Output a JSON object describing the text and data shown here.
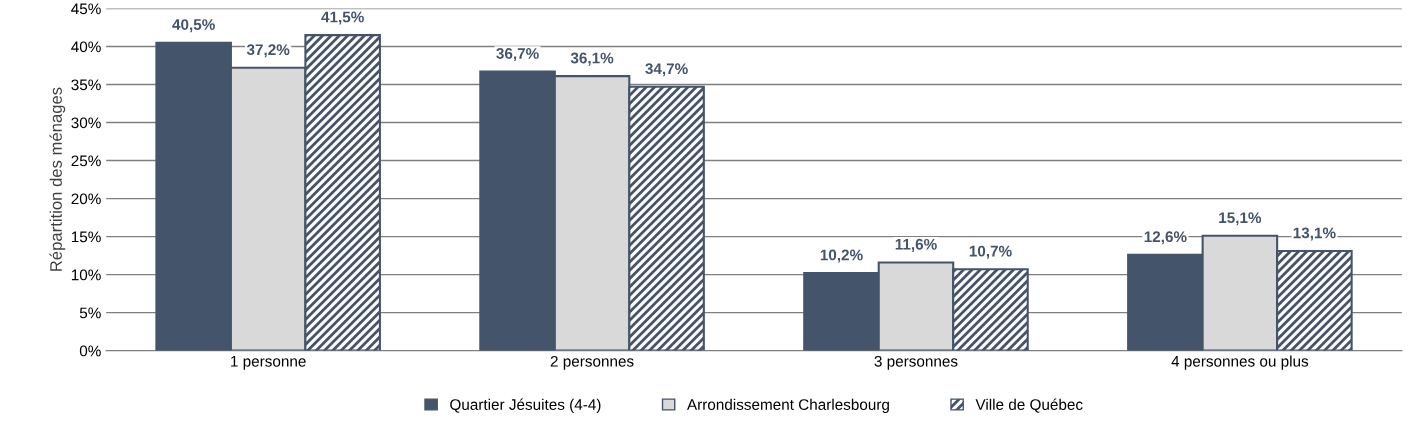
{
  "chart_data": {
    "type": "bar",
    "ylabel": "Répartition des ménages",
    "categories": [
      "1 personne",
      "2 personnes",
      "3 personnes",
      "4 personnes ou plus"
    ],
    "series": [
      {
        "name": "Quartier Jésuites (4-4)",
        "color": "#44546a",
        "values": [
          40.5,
          36.7,
          10.2,
          12.6
        ],
        "value_labels": [
          "40,5%",
          "36,7%",
          "10,2%",
          "12,6%"
        ]
      },
      {
        "name": "Arrondissement Charlesbourg",
        "color": "#d9d9d9",
        "values": [
          37.2,
          36.1,
          11.6,
          15.1
        ],
        "value_labels": [
          "37,2%",
          "36,1%",
          "11,6%",
          "15,1%"
        ]
      },
      {
        "name": "Ville de Québec",
        "color": "#44546a",
        "values": [
          41.5,
          34.7,
          10.7,
          13.1
        ],
        "value_labels": [
          "41,5%",
          "34,7%",
          "10,7%",
          "13,1%"
        ]
      }
    ],
    "ylim": [
      0,
      45
    ],
    "yticks": [
      {
        "value": 0,
        "label": "0%"
      },
      {
        "value": 5,
        "label": "5%"
      },
      {
        "value": 10,
        "label": "10%"
      },
      {
        "value": 15,
        "label": "15%"
      },
      {
        "value": 20,
        "label": "20%"
      },
      {
        "value": 25,
        "label": "25%"
      },
      {
        "value": 30,
        "label": "30%"
      },
      {
        "value": 35,
        "label": "35%"
      },
      {
        "value": 40,
        "label": "40%"
      },
      {
        "value": 45,
        "label": "45%"
      }
    ],
    "grid": "y",
    "legend": "bottom"
  }
}
